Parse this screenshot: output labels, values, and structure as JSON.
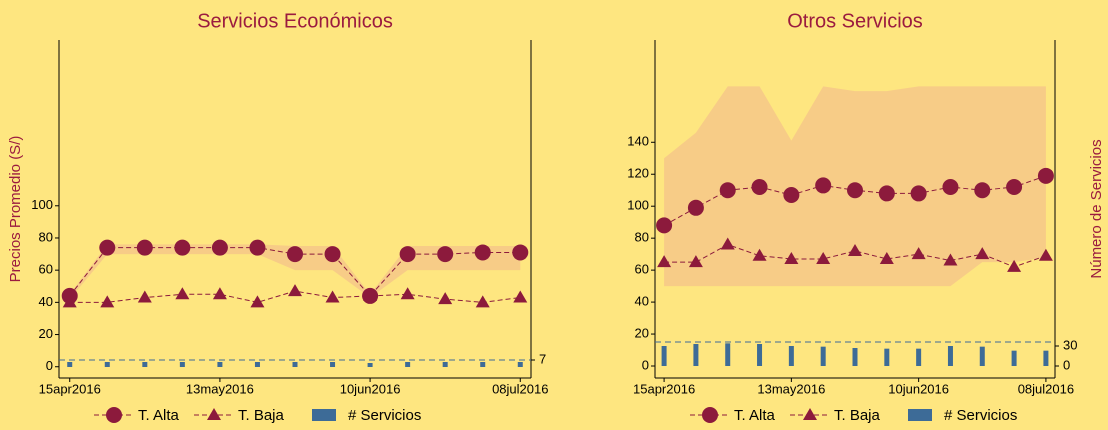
{
  "chart_data": [
    {
      "type": "line",
      "title": "Servicios Económicos",
      "ylabel": "Precios Promedio (S/)",
      "x": [
        "2016-04-15",
        "2016-04-22",
        "2016-04-29",
        "2016-05-06",
        "2016-05-13",
        "2016-05-20",
        "2016-05-27",
        "2016-06-03",
        "2016-06-10",
        "2016-06-17",
        "2016-06-24",
        "2016-07-01",
        "2016-07-08"
      ],
      "xlim": [
        "2016-04-13",
        "2016-07-10"
      ],
      "xticks": [
        {
          "value": "2016-04-15",
          "label": "15apr2016"
        },
        {
          "value": "2016-05-13",
          "label": "13may2016"
        },
        {
          "value": "2016-06-10",
          "label": "10jun2016"
        },
        {
          "value": "2016-07-08",
          "label": "08jul2016"
        }
      ],
      "ylim": [
        -7,
        203
      ],
      "yticks": [
        0,
        20,
        40,
        60,
        80,
        100
      ],
      "y2lim": [
        -11,
        327
      ],
      "y2ticks": [
        7
      ],
      "y2line": 7,
      "band_color": "#f6c987",
      "band_upper": [
        45,
        76,
        76,
        76,
        76,
        76,
        75,
        75,
        45,
        75,
        75,
        75,
        75
      ],
      "band_lower": [
        42,
        70,
        70,
        70,
        70,
        70,
        60,
        60,
        43,
        60,
        60,
        60,
        60
      ],
      "series": [
        {
          "name": "T. Alta",
          "color": "#8c1a3c",
          "marker": "circle",
          "values": [
            44,
            74,
            74,
            74,
            74,
            74,
            70,
            70,
            44,
            70,
            70,
            71,
            71
          ]
        },
        {
          "name": "T. Baja",
          "color": "#8c1a3c",
          "marker": "triangle",
          "values": [
            40,
            40,
            43,
            45,
            45,
            40,
            47,
            43,
            44,
            45,
            42,
            40,
            43
          ]
        },
        {
          "name": "# Servicios",
          "color": "#3d6b97",
          "marker": "bar",
          "axis": "y2",
          "values": [
            5,
            5,
            5,
            5,
            5,
            5,
            5,
            5,
            4,
            5,
            5,
            5,
            5
          ]
        }
      ]
    },
    {
      "type": "line",
      "title": "Otros Servicios",
      "y2label": "Número de Servicios",
      "x": [
        "2016-04-15",
        "2016-04-22",
        "2016-04-29",
        "2016-05-06",
        "2016-05-13",
        "2016-05-20",
        "2016-05-27",
        "2016-06-03",
        "2016-06-10",
        "2016-06-17",
        "2016-06-24",
        "2016-07-01",
        "2016-07-08"
      ],
      "xlim": [
        "2016-04-13",
        "2016-07-10"
      ],
      "xticks": [
        {
          "value": "2016-04-15",
          "label": "15apr2016"
        },
        {
          "value": "2016-05-13",
          "label": "13may2016"
        },
        {
          "value": "2016-06-10",
          "label": "10jun2016"
        },
        {
          "value": "2016-07-08",
          "label": "08jul2016"
        }
      ],
      "ylim": [
        -7.5,
        204
      ],
      "yticks": [
        0,
        20,
        40,
        60,
        80,
        100,
        120,
        140
      ],
      "y2lim": [
        -18,
        489
      ],
      "y2ticks": [
        0,
        30
      ],
      "y2line": 36,
      "band_color": "#f6c987",
      "band_upper": [
        130,
        146,
        175,
        175,
        141,
        175,
        172,
        172,
        175,
        175,
        175,
        175,
        175
      ],
      "band_lower": [
        50,
        50,
        50,
        50,
        50,
        50,
        50,
        50,
        50,
        50,
        65,
        65,
        68
      ],
      "series": [
        {
          "name": "T. Alta",
          "color": "#8c1a3c",
          "marker": "circle",
          "values": [
            88,
            99,
            110,
            112,
            107,
            113,
            110,
            108,
            108,
            112,
            110,
            112,
            119
          ]
        },
        {
          "name": "T. Baja",
          "color": "#8c1a3c",
          "marker": "triangle",
          "values": [
            65,
            65,
            76,
            69,
            67,
            67,
            72,
            67,
            70,
            66,
            70,
            62,
            69
          ]
        },
        {
          "name": "# Servicios",
          "color": "#3d6b97",
          "marker": "bar",
          "axis": "y2",
          "values": [
            30,
            33,
            34,
            33,
            30,
            29,
            27,
            26,
            26,
            30,
            29,
            23,
            23
          ]
        }
      ]
    }
  ]
}
